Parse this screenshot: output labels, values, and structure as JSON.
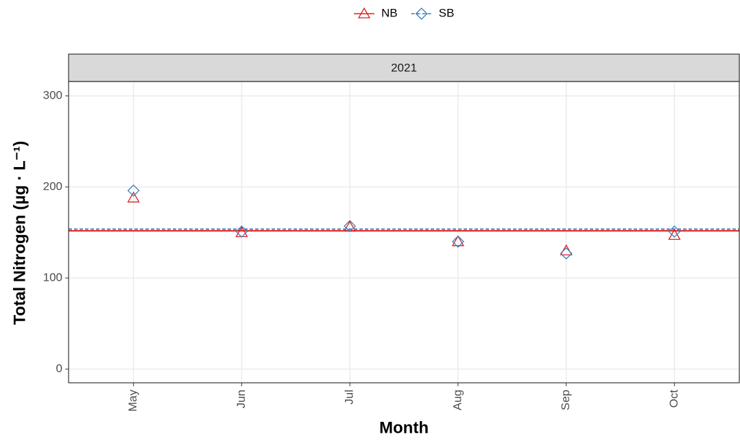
{
  "chart_data": {
    "type": "line",
    "panel": "2021",
    "x_label": "Month",
    "y_label": "Total Nitrogen (µg · L⁻¹)",
    "categories": [
      "May",
      "Jun",
      "Jul",
      "Aug",
      "Sep",
      "Oct"
    ],
    "series": [
      {
        "name": "NB",
        "color": "#e41a1c",
        "marker": "triangle",
        "dash": false,
        "mean": 151.8,
        "values": [
          188,
          150,
          156,
          140,
          130,
          147
        ]
      },
      {
        "name": "SB",
        "color": "#377eb8",
        "marker": "diamond",
        "dash": true,
        "mean": 153.7,
        "values": [
          196,
          151,
          157,
          140,
          127,
          151
        ]
      }
    ],
    "ylim": [
      -15,
      315
    ],
    "yticks": [
      0,
      100,
      200,
      300
    ],
    "grid": true,
    "legend": "top"
  }
}
